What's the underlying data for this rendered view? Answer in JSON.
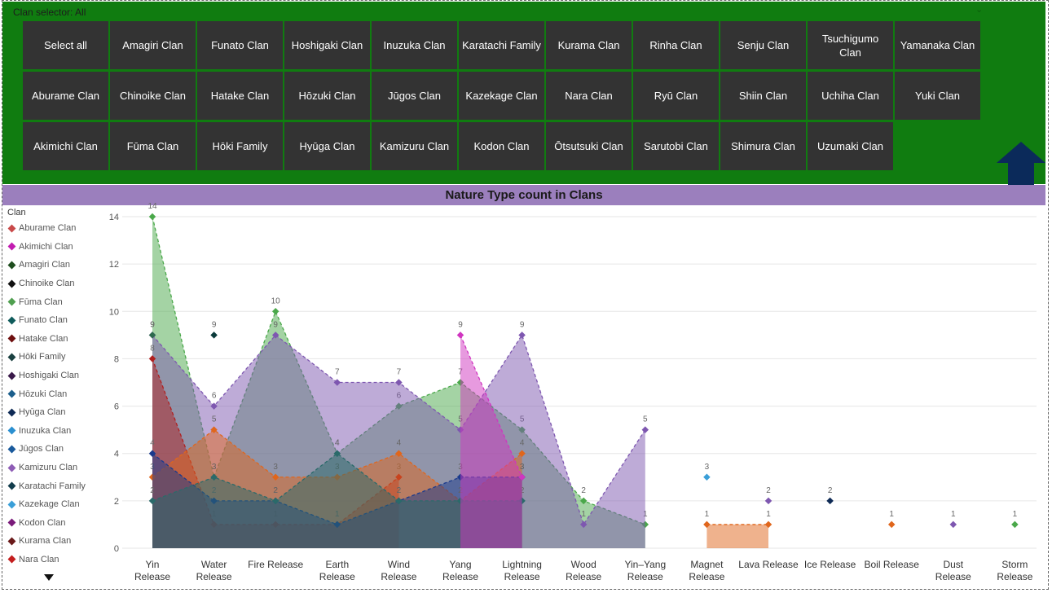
{
  "slicer": {
    "header": "Clan selector: All",
    "buttons": [
      "Select all",
      "Amagiri Clan",
      "Funato Clan",
      "Hoshigaki Clan",
      "Inuzuka Clan",
      "Karatachi Family",
      "Kurama Clan",
      "Rinha Clan",
      "Senju Clan",
      "Tsuchigumo Clan",
      "Yamanaka Clan",
      "Aburame Clan",
      "Chinoike Clan",
      "Hatake Clan",
      "Hōzuki Clan",
      "Jūgos Clan",
      "Kazekage Clan",
      "Nara Clan",
      "Ryū Clan",
      "Shiin Clan",
      "Uchiha Clan",
      "Yuki Clan",
      "Akimichi Clan",
      "Fūma Clan",
      "Hōki Family",
      "Hyūga Clan",
      "Kamizuru Clan",
      "Kodon Clan",
      "Ōtsutsuki Clan",
      "Sarutobi Clan",
      "Shimura Clan",
      "Uzumaki Clan"
    ]
  },
  "colors": {
    "slicer_bg": "#107c10",
    "button_bg": "#333333",
    "title_bar": "#9b7fbd",
    "nav_arrow": "#0b2a5a"
  },
  "icons": {
    "nav": "up-arrow-icon",
    "legend_more": "chevron-down-icon"
  },
  "chart_data": {
    "type": "area",
    "title": "Nature Type count in Clans",
    "legend_title": "Clan",
    "legend_position": "left",
    "grid": true,
    "line_style": "dashed",
    "ylim": [
      0,
      14
    ],
    "yticks": [
      0,
      2,
      4,
      6,
      8,
      10,
      12,
      14
    ],
    "categories": [
      "Yin Release",
      "Water Release",
      "Fire Release",
      "Earth Release",
      "Wind Release",
      "Yang Release",
      "Lightning Release",
      "Wood Release",
      "Yin–Yang Release",
      "Magnet Release",
      "Lava Release",
      "Ice Release",
      "Boil Release",
      "Dust Release",
      "Storm Release"
    ],
    "legend": [
      {
        "name": "Aburame Clan",
        "color": "#c94a4a"
      },
      {
        "name": "Akimichi Clan",
        "color": "#c21cb0"
      },
      {
        "name": "Amagiri Clan",
        "color": "#1e4d1e"
      },
      {
        "name": "Chinoike Clan",
        "color": "#111111"
      },
      {
        "name": "Fūma Clan",
        "color": "#4f9f4f"
      },
      {
        "name": "Funato Clan",
        "color": "#0f5b5b"
      },
      {
        "name": "Hatake Clan",
        "color": "#6e0f0f"
      },
      {
        "name": "Hōki Family",
        "color": "#1a4040"
      },
      {
        "name": "Hoshigaki Clan",
        "color": "#3a1a4a"
      },
      {
        "name": "Hōzuki Clan",
        "color": "#1b5e8c"
      },
      {
        "name": "Hyūga Clan",
        "color": "#0e2a55"
      },
      {
        "name": "Inuzuka Clan",
        "color": "#2a8fd0"
      },
      {
        "name": "Jūgos Clan",
        "color": "#1a5a9c"
      },
      {
        "name": "Kamizuru Clan",
        "color": "#8e5cb5"
      },
      {
        "name": "Karatachi Family",
        "color": "#123c4c"
      },
      {
        "name": "Kazekage Clan",
        "color": "#3a9fd8"
      },
      {
        "name": "Kodon Clan",
        "color": "#7a1a7a"
      },
      {
        "name": "Kurama Clan",
        "color": "#6a1a1a"
      },
      {
        "name": "Nara Clan",
        "color": "#c41e1e"
      }
    ],
    "series": [
      {
        "color": "#4aa84a",
        "values": [
          14,
          3,
          10,
          4,
          6,
          7,
          5,
          2,
          1,
          null,
          null,
          null,
          null,
          null,
          1
        ]
      },
      {
        "color": "#7e57b0",
        "values": [
          9,
          6,
          9,
          7,
          7,
          5,
          9,
          1,
          5,
          null,
          2,
          null,
          null,
          1,
          null
        ]
      },
      {
        "color": "#2e6b4e",
        "values": [
          9,
          null,
          null,
          null,
          null,
          null,
          null,
          null,
          null,
          null,
          null,
          null,
          null,
          null,
          null
        ]
      },
      {
        "color": "#b02020",
        "values": [
          8,
          1,
          1,
          1,
          3,
          null,
          null,
          null,
          null,
          null,
          null,
          null,
          null,
          null,
          null
        ]
      },
      {
        "color": "#e0661c",
        "values": [
          3,
          5,
          3,
          3,
          4,
          2,
          4,
          null,
          null,
          1,
          1,
          null,
          1,
          null,
          null
        ]
      },
      {
        "color": "#1a3a8c",
        "values": [
          4,
          2,
          2,
          1,
          2,
          3,
          3,
          null,
          null,
          null,
          null,
          null,
          null,
          null,
          null
        ]
      },
      {
        "color": "#2a6a6a",
        "values": [
          2,
          3,
          2,
          4,
          2,
          2,
          2,
          null,
          null,
          null,
          null,
          null,
          null,
          null,
          null
        ]
      },
      {
        "color": "#d035c0",
        "values": [
          null,
          null,
          null,
          null,
          null,
          9,
          3,
          null,
          null,
          null,
          null,
          null,
          null,
          null,
          null
        ]
      },
      {
        "color": "#0a3a3a",
        "values": [
          null,
          9,
          null,
          null,
          null,
          null,
          null,
          null,
          null,
          null,
          null,
          null,
          null,
          null,
          null
        ]
      },
      {
        "color": "#3a9fd8",
        "values": [
          null,
          null,
          null,
          null,
          null,
          null,
          null,
          null,
          null,
          3,
          null,
          null,
          null,
          null,
          null
        ]
      },
      {
        "color": "#0e2a55",
        "values": [
          null,
          null,
          null,
          null,
          null,
          null,
          null,
          null,
          null,
          null,
          null,
          2,
          null,
          null,
          null
        ]
      }
    ]
  }
}
